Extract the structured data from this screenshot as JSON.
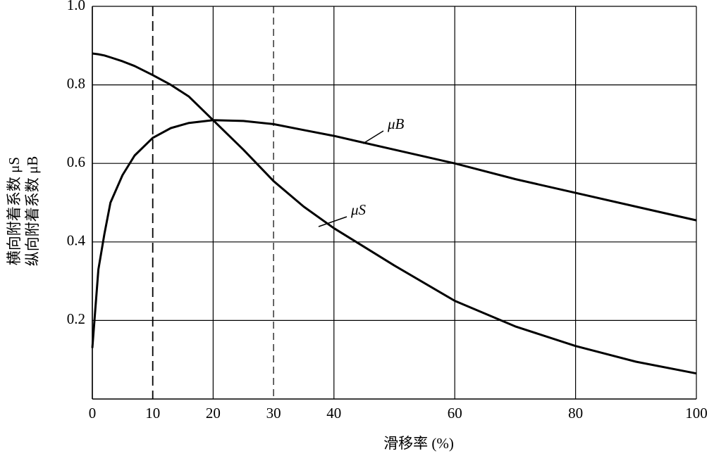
{
  "chart_data": {
    "type": "line",
    "x_label": "滑移率 (%)",
    "y_label": [
      "横向附着系数 μS",
      "纵向附着系数 μB"
    ],
    "x": [
      0,
      1,
      2,
      3,
      5,
      7,
      10,
      13,
      16,
      20,
      25,
      30,
      35,
      40,
      50,
      60,
      70,
      80,
      90,
      100
    ],
    "series": [
      {
        "name": "μB",
        "color": "#000000",
        "values": [
          0.13,
          0.33,
          0.42,
          0.5,
          0.57,
          0.62,
          0.665,
          0.69,
          0.703,
          0.71,
          0.708,
          0.7,
          0.685,
          0.67,
          0.635,
          0.6,
          0.56,
          0.525,
          0.49,
          0.455
        ]
      },
      {
        "name": "μS",
        "color": "#000000",
        "values": [
          0.88,
          0.878,
          0.875,
          0.87,
          0.86,
          0.848,
          0.825,
          0.8,
          0.77,
          0.71,
          0.635,
          0.555,
          0.49,
          0.435,
          0.34,
          0.25,
          0.185,
          0.135,
          0.095,
          0.065
        ]
      }
    ],
    "xlim": [
      0,
      100
    ],
    "ylim": [
      0,
      1
    ],
    "xticks": [
      0,
      10,
      20,
      30,
      40,
      60,
      80,
      100
    ],
    "yticks": [
      0.2,
      0.4,
      0.6,
      0.8,
      {
        "value": 1,
        "label": "1.0"
      }
    ],
    "reference_lines": [
      10,
      30
    ],
    "grid": true
  }
}
